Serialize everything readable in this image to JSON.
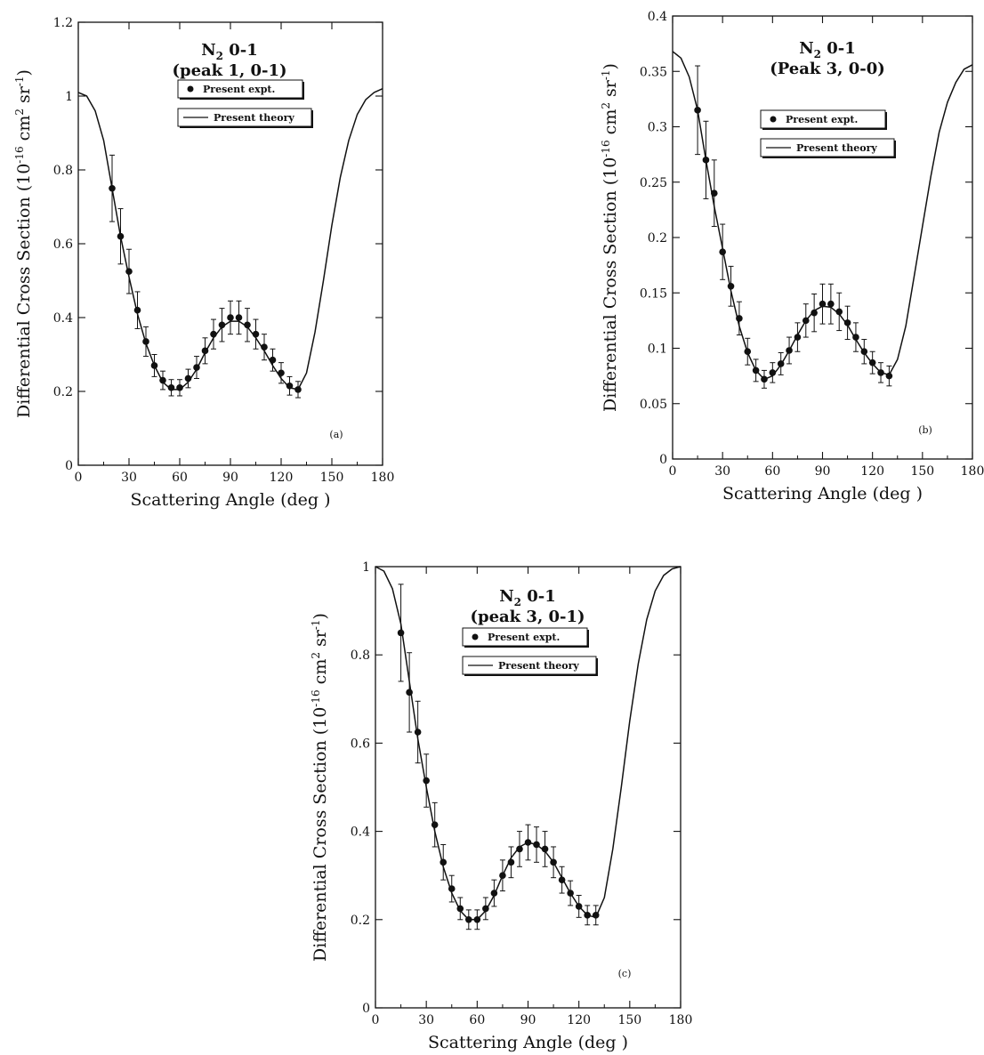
{
  "chart_data": [
    {
      "type": "scatter",
      "panel_label": "(a)",
      "title_line1": "N",
      "title_sub": "2",
      "title_line1_rest": " 0-1",
      "title_line2": "(peak   1,  0-1)",
      "ylabel": "Differential Cross Section (10-16 cm2 sr-1)",
      "ylabel_parts": [
        "Differential Cross Section (10",
        "-16",
        " cm",
        "2",
        " sr",
        "-1",
        ")"
      ],
      "xlabel": "Scattering Angle (deg )",
      "xlim": [
        0,
        180
      ],
      "ylim": [
        0,
        1.2
      ],
      "xticks": [
        "0",
        "30",
        "60",
        "90",
        "120",
        "150",
        "180"
      ],
      "xtick_values": [
        0,
        30,
        60,
        90,
        120,
        150,
        180
      ],
      "yticks": [
        "0",
        "0.2",
        "0.4",
        "0.6",
        "0.8",
        "1",
        "1.2"
      ],
      "ytick_values": [
        0,
        0.2,
        0.4,
        0.6,
        0.8,
        1.0,
        1.2
      ],
      "legend": {
        "expt": "Present expt.",
        "theory": "Present theory",
        "position": "upper-center"
      },
      "series": [
        {
          "name": "Present expt.",
          "kind": "points",
          "x": [
            20,
            25,
            30,
            35,
            40,
            45,
            50,
            55,
            60,
            65,
            70,
            75,
            80,
            85,
            90,
            95,
            100,
            105,
            110,
            115,
            120,
            125,
            130
          ],
          "y": [
            0.75,
            0.62,
            0.525,
            0.42,
            0.335,
            0.27,
            0.23,
            0.21,
            0.21,
            0.235,
            0.265,
            0.31,
            0.355,
            0.38,
            0.4,
            0.4,
            0.38,
            0.355,
            0.32,
            0.285,
            0.25,
            0.215,
            0.205
          ],
          "yerr": [
            0.09,
            0.075,
            0.06,
            0.05,
            0.04,
            0.03,
            0.025,
            0.022,
            0.022,
            0.025,
            0.03,
            0.035,
            0.04,
            0.045,
            0.045,
            0.045,
            0.045,
            0.04,
            0.035,
            0.03,
            0.028,
            0.025,
            0.022
          ]
        },
        {
          "name": "Present theory",
          "kind": "line",
          "x": [
            0,
            5,
            10,
            15,
            20,
            25,
            30,
            35,
            40,
            45,
            50,
            55,
            60,
            65,
            70,
            75,
            80,
            85,
            90,
            95,
            100,
            105,
            110,
            115,
            120,
            125,
            130,
            135,
            140,
            145,
            150,
            155,
            160,
            165,
            170,
            175,
            180
          ],
          "y": [
            1.01,
            1.0,
            0.96,
            0.88,
            0.75,
            0.62,
            0.51,
            0.41,
            0.33,
            0.27,
            0.225,
            0.205,
            0.205,
            0.225,
            0.26,
            0.305,
            0.345,
            0.375,
            0.39,
            0.39,
            0.375,
            0.345,
            0.31,
            0.27,
            0.235,
            0.21,
            0.205,
            0.25,
            0.36,
            0.5,
            0.65,
            0.78,
            0.88,
            0.95,
            0.99,
            1.01,
            1.02
          ]
        }
      ]
    },
    {
      "type": "scatter",
      "panel_label": "(b)",
      "title_line1": "N",
      "title_sub": "2",
      "title_line1_rest": " 0-1",
      "title_line2": "(Peak   3,  0-0)",
      "ylabel": "Differential Cross Section (10-16 cm2 sr-1)",
      "ylabel_parts": [
        "Differential Cross Section (10",
        "-16",
        " cm",
        "2",
        " sr",
        "-1",
        ")"
      ],
      "xlabel": "Scattering Angle (deg )",
      "xlim": [
        0,
        180
      ],
      "ylim": [
        0,
        0.4
      ],
      "xticks": [
        "0",
        "30",
        "60",
        "90",
        "120",
        "150",
        "180"
      ],
      "xtick_values": [
        0,
        30,
        60,
        90,
        120,
        150,
        180
      ],
      "yticks": [
        "0",
        "0.05",
        "0.1",
        "0.15",
        "0.2",
        "0.25",
        "0.3",
        "0.35",
        "0.4"
      ],
      "ytick_values": [
        0,
        0.05,
        0.1,
        0.15,
        0.2,
        0.25,
        0.3,
        0.35,
        0.4
      ],
      "legend": {
        "expt": "Present expt.",
        "theory": "Present theory",
        "position": "upper-center"
      },
      "series": [
        {
          "name": "Present expt.",
          "kind": "points",
          "x": [
            15,
            20,
            25,
            30,
            35,
            40,
            45,
            50,
            55,
            60,
            65,
            70,
            75,
            80,
            85,
            90,
            95,
            100,
            105,
            110,
            115,
            120,
            125,
            130
          ],
          "y": [
            0.315,
            0.27,
            0.24,
            0.187,
            0.156,
            0.127,
            0.097,
            0.08,
            0.072,
            0.078,
            0.086,
            0.098,
            0.11,
            0.125,
            0.132,
            0.14,
            0.14,
            0.133,
            0.123,
            0.11,
            0.097,
            0.087,
            0.078,
            0.075
          ],
          "yerr": [
            0.04,
            0.035,
            0.03,
            0.025,
            0.018,
            0.015,
            0.012,
            0.01,
            0.008,
            0.009,
            0.01,
            0.012,
            0.013,
            0.015,
            0.017,
            0.018,
            0.018,
            0.017,
            0.015,
            0.013,
            0.011,
            0.01,
            0.009,
            0.009
          ]
        },
        {
          "name": "Present theory",
          "kind": "line",
          "x": [
            0,
            5,
            10,
            15,
            20,
            25,
            30,
            35,
            40,
            45,
            50,
            55,
            60,
            65,
            70,
            75,
            80,
            85,
            90,
            95,
            100,
            105,
            110,
            115,
            120,
            125,
            130,
            135,
            140,
            145,
            150,
            155,
            160,
            165,
            170,
            175,
            180
          ],
          "y": [
            0.368,
            0.362,
            0.345,
            0.315,
            0.27,
            0.228,
            0.19,
            0.152,
            0.12,
            0.096,
            0.08,
            0.072,
            0.075,
            0.085,
            0.098,
            0.112,
            0.125,
            0.134,
            0.138,
            0.137,
            0.131,
            0.121,
            0.108,
            0.096,
            0.086,
            0.078,
            0.076,
            0.09,
            0.12,
            0.165,
            0.21,
            0.255,
            0.295,
            0.322,
            0.34,
            0.352,
            0.356
          ]
        }
      ]
    },
    {
      "type": "scatter",
      "panel_label": "(c)",
      "title_line1": "N",
      "title_sub": "2",
      "title_line1_rest": " 0-1",
      "title_line2": "(peak   3,  0-1)",
      "ylabel": "Differential Cross Section (10-16 cm2 sr-1)",
      "ylabel_parts": [
        "Differential Cross Section (10",
        "-16",
        " cm",
        "2",
        " sr",
        "-1",
        ")"
      ],
      "xlabel": "Scattering Angle (deg )",
      "xlim": [
        0,
        180
      ],
      "ylim": [
        0,
        1.0
      ],
      "xticks": [
        "0",
        "30",
        "60",
        "90",
        "120",
        "150",
        "180"
      ],
      "xtick_values": [
        0,
        30,
        60,
        90,
        120,
        150,
        180
      ],
      "yticks": [
        "0",
        "0.2",
        "0.4",
        "0.6",
        "0.8",
        "1"
      ],
      "ytick_values": [
        0,
        0.2,
        0.4,
        0.6,
        0.8,
        1.0
      ],
      "legend": {
        "expt": "Present expt.",
        "theory": "Present theory",
        "position": "upper-center"
      },
      "series": [
        {
          "name": "Present expt.",
          "kind": "points",
          "x": [
            15,
            20,
            25,
            30,
            35,
            40,
            45,
            50,
            55,
            60,
            65,
            70,
            75,
            80,
            85,
            90,
            95,
            100,
            105,
            110,
            115,
            120,
            125,
            130
          ],
          "y": [
            0.85,
            0.715,
            0.625,
            0.515,
            0.415,
            0.33,
            0.27,
            0.225,
            0.2,
            0.2,
            0.225,
            0.26,
            0.3,
            0.33,
            0.36,
            0.375,
            0.37,
            0.36,
            0.33,
            0.29,
            0.26,
            0.23,
            0.21,
            0.21
          ],
          "yerr": [
            0.11,
            0.09,
            0.07,
            0.06,
            0.05,
            0.04,
            0.03,
            0.025,
            0.022,
            0.022,
            0.025,
            0.03,
            0.035,
            0.035,
            0.04,
            0.04,
            0.04,
            0.04,
            0.035,
            0.03,
            0.028,
            0.025,
            0.022,
            0.022
          ]
        },
        {
          "name": "Present theory",
          "kind": "line",
          "x": [
            0,
            5,
            10,
            15,
            20,
            25,
            30,
            35,
            40,
            45,
            50,
            55,
            60,
            65,
            70,
            75,
            80,
            85,
            90,
            95,
            100,
            105,
            110,
            115,
            120,
            125,
            130,
            135,
            140,
            145,
            150,
            155,
            160,
            165,
            170,
            175,
            180
          ],
          "y": [
            1.0,
            0.99,
            0.95,
            0.87,
            0.74,
            0.61,
            0.5,
            0.4,
            0.32,
            0.26,
            0.22,
            0.2,
            0.2,
            0.22,
            0.255,
            0.3,
            0.34,
            0.365,
            0.375,
            0.37,
            0.355,
            0.33,
            0.295,
            0.26,
            0.23,
            0.21,
            0.205,
            0.25,
            0.36,
            0.5,
            0.65,
            0.78,
            0.88,
            0.945,
            0.98,
            0.995,
            1.0
          ]
        }
      ]
    }
  ]
}
